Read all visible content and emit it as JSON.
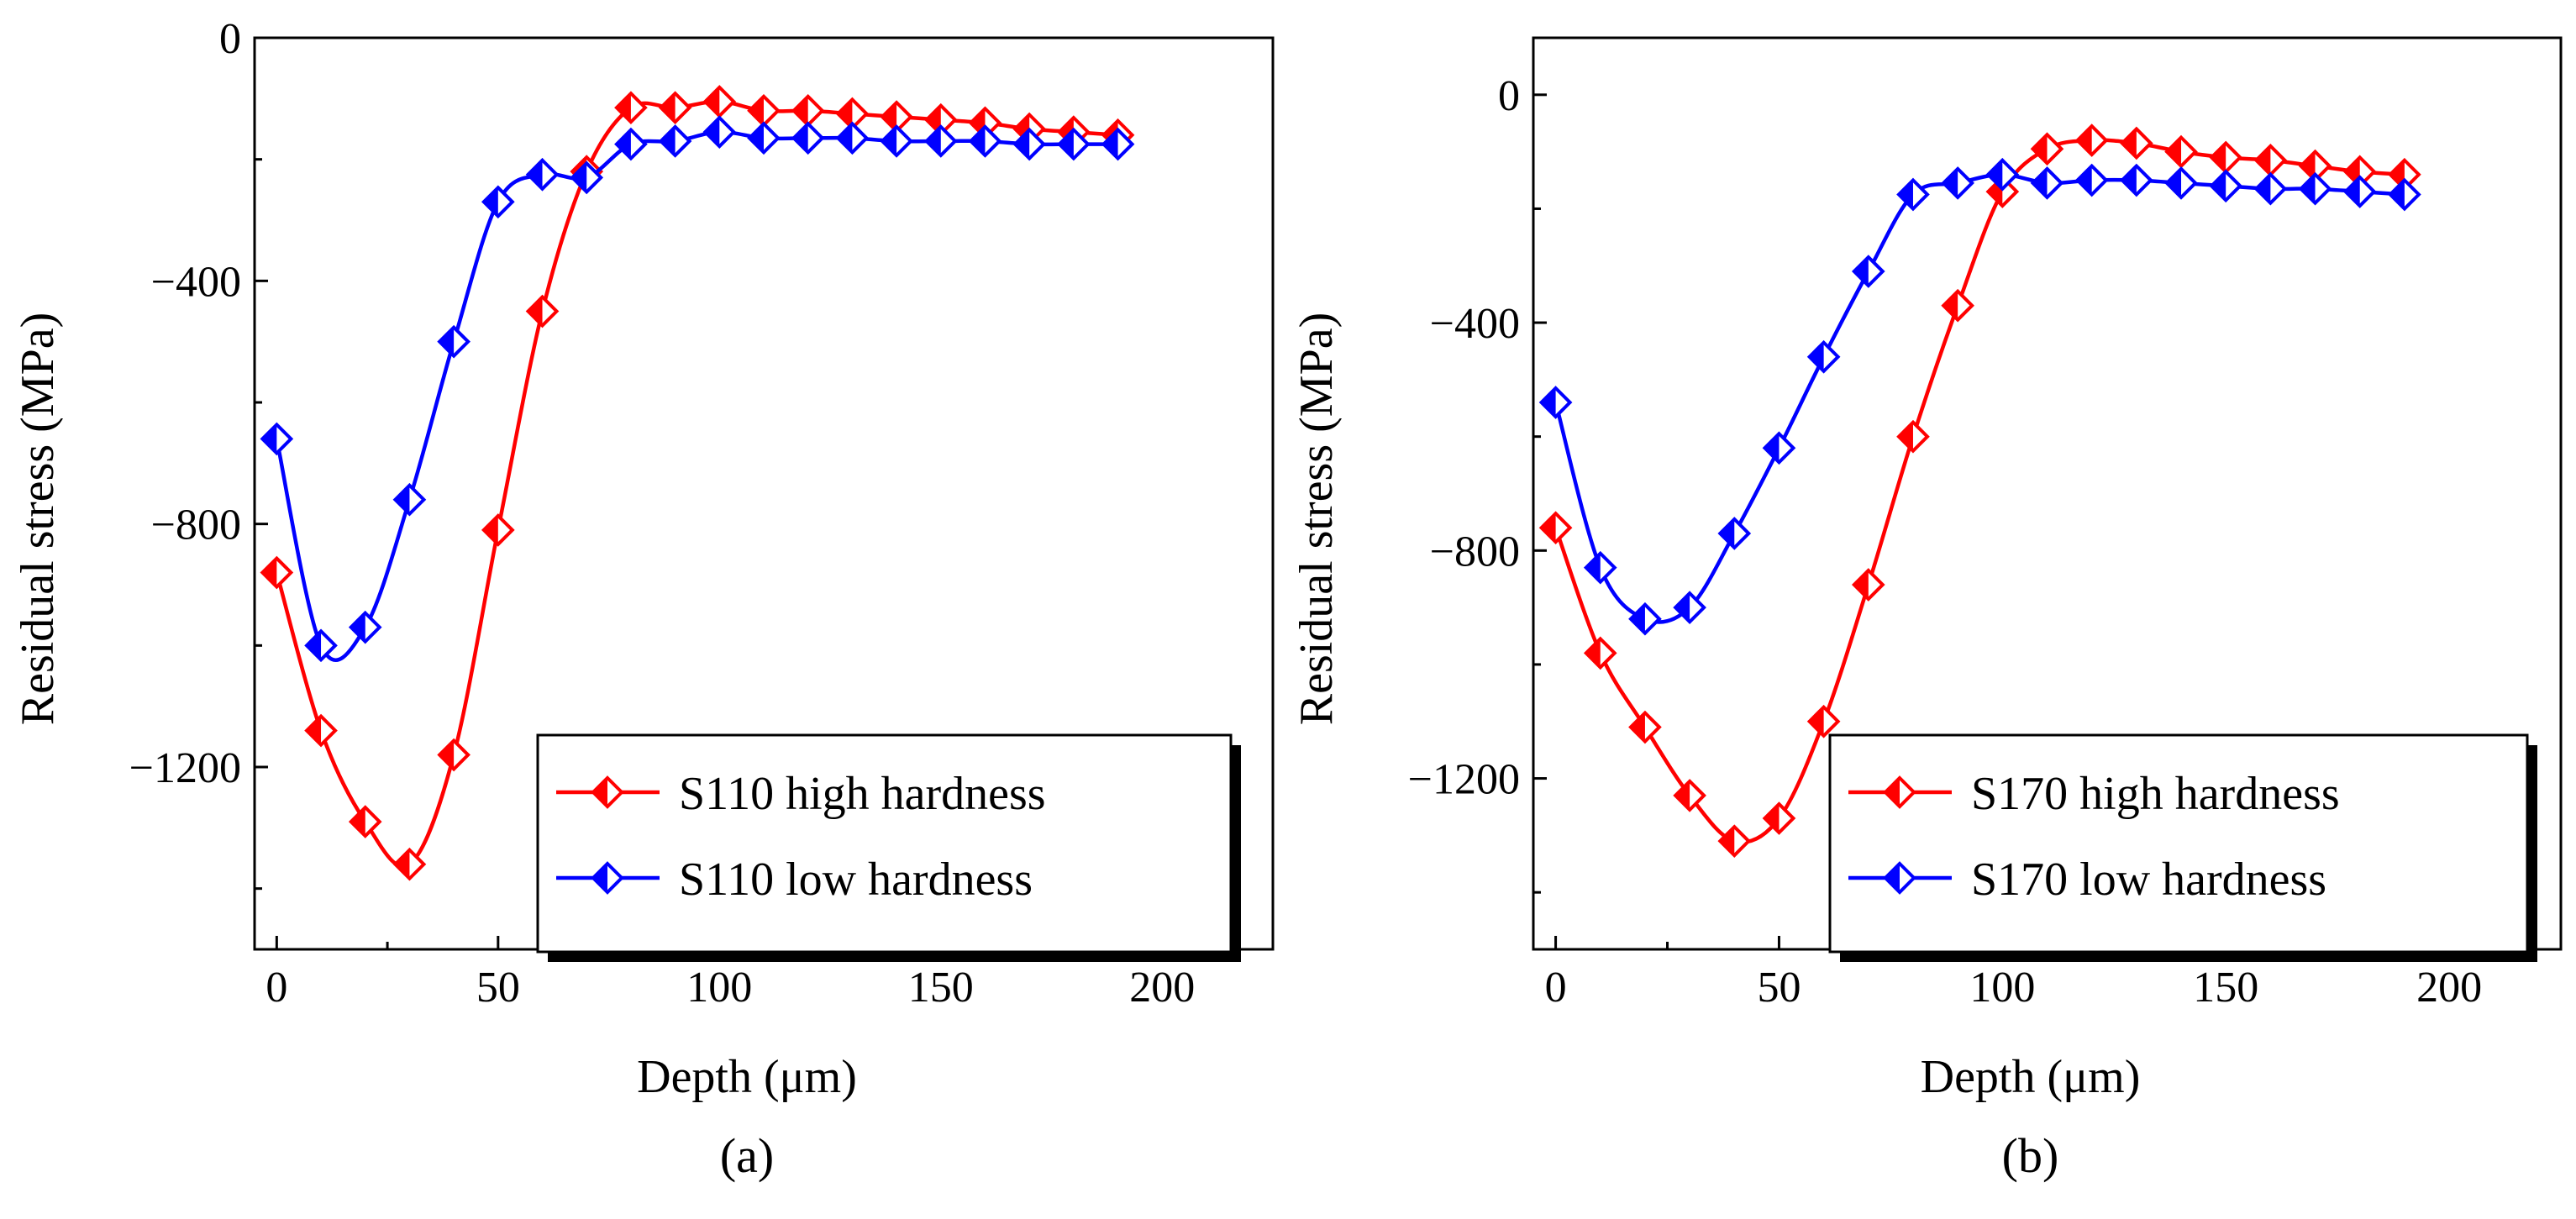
{
  "chart_data": [
    {
      "type": "line",
      "caption": "(a)",
      "xlabel": "Depth (μm)",
      "ylabel": "Residual stress (MPa)",
      "xlim": [
        -5,
        225
      ],
      "ylim": [
        -1500,
        0
      ],
      "xticks": [
        0,
        50,
        100,
        150,
        200
      ],
      "yticks": [
        0,
        -400,
        -800,
        -1200
      ],
      "xtick_labels": [
        "0",
        "50",
        "100",
        "150",
        "200"
      ],
      "ytick_labels": [
        "0",
        "−400",
        "−800",
        "−1200"
      ],
      "legend_position": "bottom-right",
      "x": [
        0,
        10,
        20,
        30,
        40,
        50,
        60,
        70,
        80,
        90,
        100,
        110,
        120,
        130,
        140,
        150,
        160,
        170,
        180,
        190
      ],
      "series": [
        {
          "name": "S110 high hardness",
          "color": "#ff0000",
          "values": [
            -880,
            -1140,
            -1290,
            -1360,
            -1180,
            -810,
            -450,
            -220,
            -115,
            -115,
            -105,
            -120,
            -120,
            -125,
            -130,
            -135,
            -140,
            -150,
            -155,
            -160
          ]
        },
        {
          "name": "S110 low hardness",
          "color": "#0000ff",
          "values": [
            -660,
            -1000,
            -970,
            -760,
            -500,
            -270,
            -225,
            -230,
            -175,
            -170,
            -155,
            -165,
            -165,
            -165,
            -170,
            -170,
            -170,
            -175,
            -175,
            -175
          ]
        }
      ]
    },
    {
      "type": "line",
      "caption": "(b)",
      "xlabel": "Depth (μm)",
      "ylabel": "Residual stress (MPa)",
      "xlim": [
        -5,
        225
      ],
      "ylim": [
        -1500,
        100
      ],
      "xticks": [
        0,
        50,
        100,
        150,
        200
      ],
      "yticks": [
        0,
        -400,
        -800,
        -1200
      ],
      "xtick_labels": [
        "0",
        "50",
        "100",
        "150",
        "200"
      ],
      "ytick_labels": [
        "0",
        "−400",
        "−800",
        "−1200"
      ],
      "legend_position": "bottom-right",
      "x": [
        0,
        10,
        20,
        30,
        40,
        50,
        60,
        70,
        80,
        90,
        100,
        110,
        120,
        130,
        140,
        150,
        160,
        170,
        180,
        190
      ],
      "series": [
        {
          "name": "S170 high hardness",
          "color": "#ff0000",
          "values": [
            -760,
            -980,
            -1110,
            -1230,
            -1310,
            -1270,
            -1100,
            -860,
            -600,
            -370,
            -170,
            -95,
            -80,
            -85,
            -100,
            -110,
            -115,
            -125,
            -135,
            -140
          ]
        },
        {
          "name": "S170 low hardness",
          "color": "#0000ff",
          "values": [
            -540,
            -830,
            -920,
            -900,
            -770,
            -620,
            -460,
            -310,
            -175,
            -155,
            -140,
            -155,
            -150,
            -150,
            -155,
            -160,
            -165,
            -165,
            -170,
            -175
          ]
        }
      ]
    }
  ]
}
